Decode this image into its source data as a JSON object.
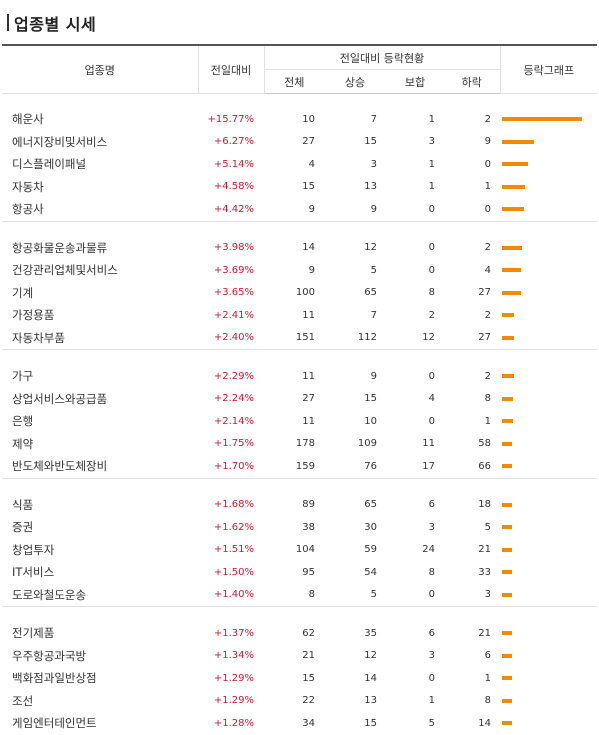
{
  "page": {
    "title": "업종별 시세",
    "accent_color": "#f28a00",
    "up_color": "#d5162d"
  },
  "headers": {
    "name": "업종명",
    "change": "전일대비",
    "group": "전일대비 등락현황",
    "total": "전체",
    "up": "상승",
    "flat": "보합",
    "down": "하락",
    "graph": "등락그래프"
  },
  "groups": [
    [
      {
        "name": "해운사",
        "change": "+15.77%",
        "total": "10",
        "up": "7",
        "flat": "1",
        "down": "2",
        "pct": 15.77
      },
      {
        "name": "에너지장비및서비스",
        "change": "+6.27%",
        "total": "27",
        "up": "15",
        "flat": "3",
        "down": "9",
        "pct": 6.27
      },
      {
        "name": "디스플레이패널",
        "change": "+5.14%",
        "total": "4",
        "up": "3",
        "flat": "1",
        "down": "0",
        "pct": 5.14
      },
      {
        "name": "자동차",
        "change": "+4.58%",
        "total": "15",
        "up": "13",
        "flat": "1",
        "down": "1",
        "pct": 4.58
      },
      {
        "name": "항공사",
        "change": "+4.42%",
        "total": "9",
        "up": "9",
        "flat": "0",
        "down": "0",
        "pct": 4.42
      }
    ],
    [
      {
        "name": "항공화물운송과물류",
        "change": "+3.98%",
        "total": "14",
        "up": "12",
        "flat": "0",
        "down": "2",
        "pct": 3.98
      },
      {
        "name": "건강관리업체및서비스",
        "change": "+3.69%",
        "total": "9",
        "up": "5",
        "flat": "0",
        "down": "4",
        "pct": 3.69
      },
      {
        "name": "기계",
        "change": "+3.65%",
        "total": "100",
        "up": "65",
        "flat": "8",
        "down": "27",
        "pct": 3.65
      },
      {
        "name": "가정용품",
        "change": "+2.41%",
        "total": "11",
        "up": "7",
        "flat": "2",
        "down": "2",
        "pct": 2.41
      },
      {
        "name": "자동차부품",
        "change": "+2.40%",
        "total": "151",
        "up": "112",
        "flat": "12",
        "down": "27",
        "pct": 2.4
      }
    ],
    [
      {
        "name": "가구",
        "change": "+2.29%",
        "total": "11",
        "up": "9",
        "flat": "0",
        "down": "2",
        "pct": 2.29
      },
      {
        "name": "상업서비스와공급품",
        "change": "+2.24%",
        "total": "27",
        "up": "15",
        "flat": "4",
        "down": "8",
        "pct": 2.24
      },
      {
        "name": "은행",
        "change": "+2.14%",
        "total": "11",
        "up": "10",
        "flat": "0",
        "down": "1",
        "pct": 2.14
      },
      {
        "name": "제약",
        "change": "+1.75%",
        "total": "178",
        "up": "109",
        "flat": "11",
        "down": "58",
        "pct": 1.75
      },
      {
        "name": "반도체와반도체장비",
        "change": "+1.70%",
        "total": "159",
        "up": "76",
        "flat": "17",
        "down": "66",
        "pct": 1.7
      }
    ],
    [
      {
        "name": "식품",
        "change": "+1.68%",
        "total": "89",
        "up": "65",
        "flat": "6",
        "down": "18",
        "pct": 1.68
      },
      {
        "name": "증권",
        "change": "+1.62%",
        "total": "38",
        "up": "30",
        "flat": "3",
        "down": "5",
        "pct": 1.62
      },
      {
        "name": "창업투자",
        "change": "+1.51%",
        "total": "104",
        "up": "59",
        "flat": "24",
        "down": "21",
        "pct": 1.51
      },
      {
        "name": "IT서비스",
        "change": "+1.50%",
        "total": "95",
        "up": "54",
        "flat": "8",
        "down": "33",
        "pct": 1.5
      },
      {
        "name": "도로와철도운송",
        "change": "+1.40%",
        "total": "8",
        "up": "5",
        "flat": "0",
        "down": "3",
        "pct": 1.4
      }
    ],
    [
      {
        "name": "전기제품",
        "change": "+1.37%",
        "total": "62",
        "up": "35",
        "flat": "6",
        "down": "21",
        "pct": 1.37
      },
      {
        "name": "우주항공과국방",
        "change": "+1.34%",
        "total": "21",
        "up": "12",
        "flat": "3",
        "down": "6",
        "pct": 1.34
      },
      {
        "name": "백화점과일반상점",
        "change": "+1.29%",
        "total": "15",
        "up": "14",
        "flat": "0",
        "down": "1",
        "pct": 1.29
      },
      {
        "name": "조선",
        "change": "+1.29%",
        "total": "22",
        "up": "13",
        "flat": "1",
        "down": "8",
        "pct": 1.29
      },
      {
        "name": "게임엔터테인먼트",
        "change": "+1.28%",
        "total": "34",
        "up": "15",
        "flat": "5",
        "down": "14",
        "pct": 1.28
      }
    ]
  ]
}
